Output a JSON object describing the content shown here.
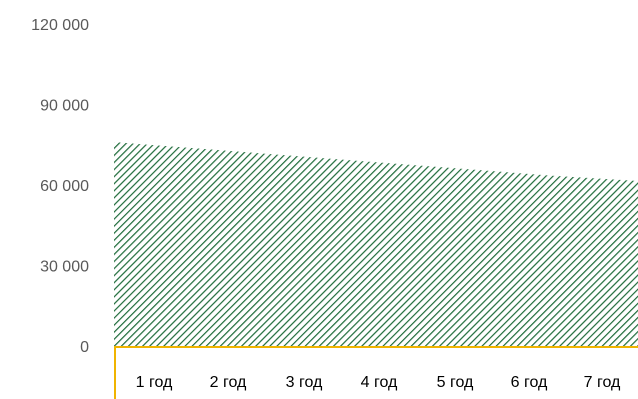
{
  "chart_data": {
    "type": "area",
    "categories": [
      "1 год",
      "2 год",
      "3 год",
      "4 год",
      "5 год",
      "6 год",
      "7 год"
    ],
    "series": [
      {
        "values": [
          76000,
          73500,
          71000,
          68500,
          66000,
          63500,
          61500
        ]
      }
    ],
    "y_ticks": [
      "0",
      "30 000",
      "60 000",
      "90 000",
      "120 000"
    ],
    "y_tick_values": [
      0,
      30000,
      60000,
      90000,
      120000
    ],
    "ylim": [
      0,
      120000
    ],
    "grid": false,
    "legend": "none",
    "colors": {
      "fill_pattern": "#1e6b3a",
      "axis_line": "#f0b400",
      "ytick_text": "#595959",
      "xtick_text": "#000000"
    }
  }
}
